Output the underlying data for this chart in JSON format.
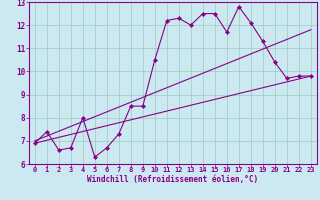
{
  "xlabel": "Windchill (Refroidissement éolien,°C)",
  "bg_color": "#cce8f0",
  "line_color": "#880088",
  "grid_color": "#99ccbb",
  "xlim": [
    -0.5,
    23.5
  ],
  "ylim": [
    6,
    13
  ],
  "xticks": [
    0,
    1,
    2,
    3,
    4,
    5,
    6,
    7,
    8,
    9,
    10,
    11,
    12,
    13,
    14,
    15,
    16,
    17,
    18,
    19,
    20,
    21,
    22,
    23
  ],
  "yticks": [
    6,
    7,
    8,
    9,
    10,
    11,
    12,
    13
  ],
  "lines": [
    {
      "x": [
        0,
        1,
        2,
        3,
        4,
        5,
        6,
        7,
        8,
        9,
        10,
        11,
        12,
        13,
        14,
        15,
        16,
        17,
        18,
        19,
        20,
        21,
        22,
        23
      ],
      "y": [
        6.9,
        7.4,
        6.6,
        6.7,
        8.0,
        6.3,
        6.7,
        7.3,
        8.5,
        8.5,
        10.5,
        12.2,
        12.3,
        12.0,
        12.5,
        12.5,
        11.7,
        12.8,
        12.1,
        11.3,
        10.4,
        9.7,
        9.8,
        9.8
      ],
      "marker": true
    },
    {
      "x": [
        0,
        23
      ],
      "y": [
        6.9,
        9.8
      ],
      "marker": false
    },
    {
      "x": [
        0,
        23
      ],
      "y": [
        7.0,
        11.8
      ],
      "marker": false
    }
  ]
}
